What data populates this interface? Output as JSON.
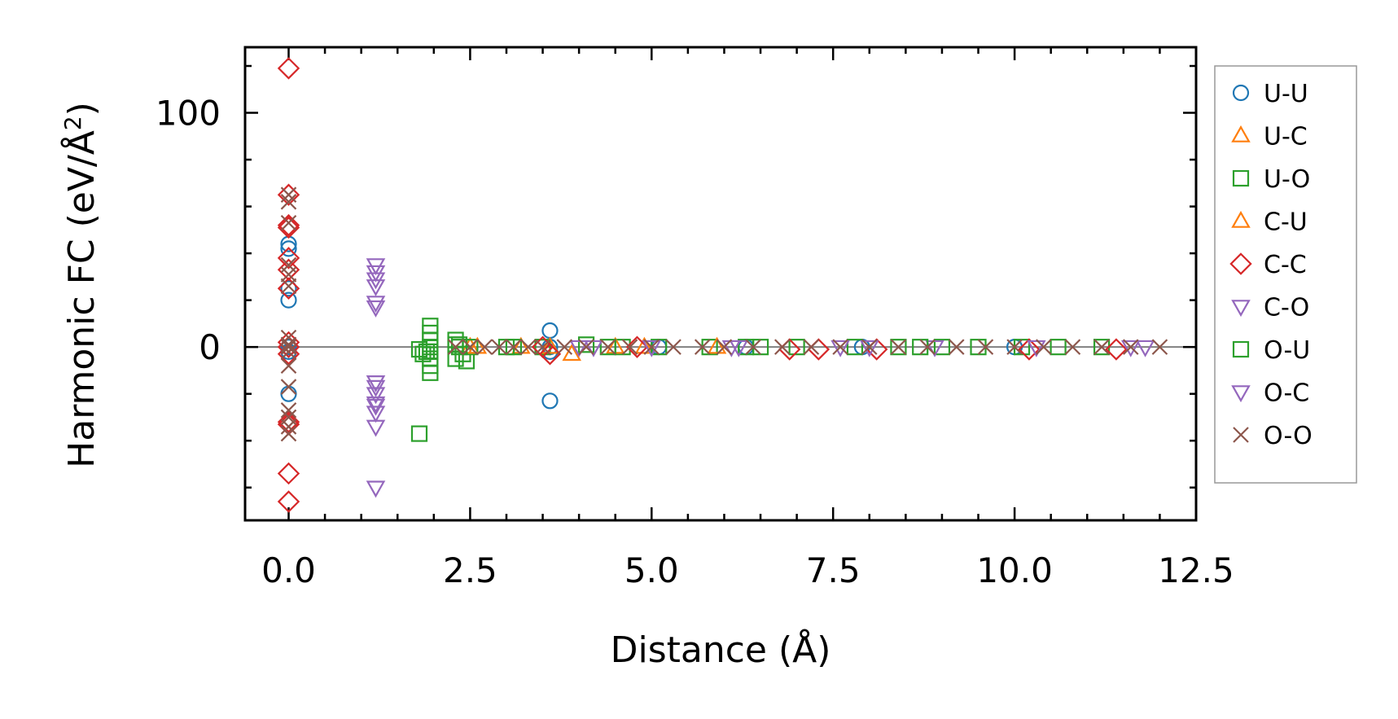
{
  "chart_data": {
    "type": "scatter",
    "title": "",
    "xlabel": "Distance (Å)",
    "ylabel_main": "Harmonic FC (eV/Å",
    "ylabel_sup": "2",
    "ylabel_close": ")",
    "xlim": [
      -0.6,
      12.5
    ],
    "ylim": [
      -74,
      128
    ],
    "xticks": [
      0.0,
      2.5,
      5.0,
      7.5,
      10.0,
      12.5
    ],
    "xtick_labels": [
      "0.0",
      "2.5",
      "5.0",
      "7.5",
      "10.0",
      "12.5"
    ],
    "yticks": [
      0,
      100
    ],
    "ytick_labels": [
      "0",
      "100"
    ],
    "zero_line": true,
    "legend_position": "outside-right",
    "series": [
      {
        "name": "U-U",
        "marker": "circle",
        "color": "#1f77b4",
        "x": [
          0,
          0,
          0,
          0,
          0,
          0,
          0,
          3.6,
          3.6,
          3.6,
          3.6,
          5.1,
          6.3,
          7.9,
          10.0
        ],
        "y": [
          44,
          42,
          25,
          20,
          0,
          -2,
          -20,
          7,
          0,
          -2,
          -23,
          0,
          0,
          0,
          0
        ]
      },
      {
        "name": "U-C",
        "marker": "triangle-up",
        "color": "#ff7f0e",
        "x": [
          2.5,
          3.2,
          3.9,
          4.9
        ],
        "y": [
          0,
          0,
          -3,
          0
        ]
      },
      {
        "name": "U-O",
        "marker": "square",
        "color": "#2ca02c",
        "x": [
          1.8,
          1.85,
          1.9,
          1.95,
          1.95,
          1.95,
          1.95,
          1.95,
          1.95,
          1.95,
          1.95,
          1.8,
          2.3,
          2.35,
          2.4,
          2.45,
          2.3,
          2.35,
          2.5,
          3.0,
          3.5,
          4.1,
          4.6,
          5.1,
          5.8,
          6.3,
          7.0,
          7.8,
          8.4,
          9.0,
          9.5,
          10.1,
          10.6,
          11.2
        ],
        "y": [
          -1,
          -3,
          -2,
          9,
          6,
          3,
          -2,
          -5,
          -8,
          -11,
          0,
          -37,
          3,
          0,
          -3,
          -6,
          -5,
          1,
          0,
          0,
          0,
          1,
          0,
          0,
          0,
          0,
          0,
          0,
          0,
          0,
          0,
          0,
          0,
          0
        ]
      },
      {
        "name": "C-U",
        "marker": "triangle-up",
        "color": "#ff7f0e",
        "x": [
          2.6,
          3.6,
          4.5,
          5.9
        ],
        "y": [
          0,
          0,
          0,
          0
        ]
      },
      {
        "name": "C-C",
        "marker": "diamond",
        "color": "#d62728",
        "x": [
          0,
          0,
          0,
          0,
          0,
          0,
          0,
          0,
          0,
          0,
          0,
          0,
          0,
          0,
          3.5,
          3.6,
          4.8,
          6.9,
          7.3,
          8.1,
          10.2,
          11.4
        ],
        "y": [
          119,
          65,
          52,
          51,
          38,
          33,
          25,
          2,
          0,
          -3,
          -32,
          -33,
          -54,
          -66,
          0,
          -3,
          0,
          -1,
          -1,
          -1,
          -1,
          -1
        ]
      },
      {
        "name": "C-O",
        "marker": "triangle-down",
        "color": "#9467bd",
        "x": [
          1.2,
          1.2,
          1.2,
          1.2,
          1.2,
          1.2,
          1.2,
          1.2,
          1.2,
          1.2,
          1.2,
          1.2,
          1.2,
          4.0,
          5.0,
          6.1,
          7.6,
          8.9,
          10.3,
          11.6
        ],
        "y": [
          35,
          32,
          29,
          26,
          19,
          17,
          -15,
          -17,
          -20,
          -25,
          -28,
          -34,
          -60,
          0,
          0,
          0,
          0,
          0,
          0,
          0
        ]
      },
      {
        "name": "O-U",
        "marker": "square",
        "color": "#2ca02c",
        "x": [
          2.3,
          3.1,
          4.4,
          6.5,
          8.7
        ],
        "y": [
          1,
          0,
          0,
          0,
          0
        ]
      },
      {
        "name": "O-C",
        "marker": "triangle-down",
        "color": "#9467bd",
        "x": [
          1.2,
          4.2,
          6.2,
          8.0,
          11.8
        ],
        "y": [
          -24,
          0,
          0,
          0,
          0
        ]
      },
      {
        "name": "O-O",
        "marker": "x",
        "color": "#8c564b",
        "x": [
          0,
          0,
          0,
          0,
          0,
          0,
          0,
          0,
          0,
          0,
          0,
          0,
          0,
          0,
          0,
          0,
          2.3,
          2.5,
          2.7,
          2.9,
          3.1,
          3.3,
          3.5,
          3.8,
          4.1,
          4.4,
          4.7,
          5.0,
          5.3,
          5.7,
          6.0,
          6.4,
          6.8,
          7.2,
          7.6,
          8.0,
          8.4,
          8.8,
          9.2,
          9.6,
          10.0,
          10.4,
          10.8,
          11.2,
          11.6,
          12.0
        ],
        "y": [
          65,
          62,
          53,
          35,
          31,
          26,
          4,
          1,
          -2,
          -8,
          -17,
          -27,
          -30,
          -34,
          -37,
          0,
          0,
          0,
          0,
          0,
          0,
          0,
          0,
          0,
          0,
          0,
          0,
          0,
          0,
          0,
          0,
          0,
          0,
          0,
          0,
          0,
          0,
          0,
          0,
          0,
          0,
          0,
          0,
          0,
          0,
          0
        ]
      }
    ]
  }
}
